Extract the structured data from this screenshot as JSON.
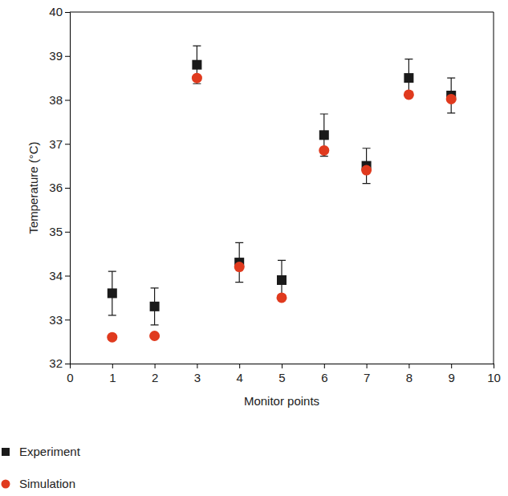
{
  "chart_data": {
    "type": "scatter",
    "x_label": "Monitor points",
    "y_label": "Temperature (°C)",
    "x": [
      1,
      2,
      3,
      4,
      5,
      6,
      7,
      8,
      9
    ],
    "series": [
      {
        "name": "Experiment",
        "color": "#1a1a1a",
        "marker": "square",
        "values": [
          33.6,
          33.3,
          38.8,
          34.3,
          33.9,
          37.2,
          36.5,
          38.5,
          38.1
        ],
        "errors": [
          0.5,
          0.42,
          0.43,
          0.45,
          0.45,
          0.48,
          0.4,
          0.43,
          0.4
        ]
      },
      {
        "name": "Simulation",
        "color": "#e03a1e",
        "marker": "circle",
        "values": [
          32.6,
          32.63,
          38.5,
          34.2,
          33.5,
          36.85,
          36.4,
          38.12,
          38.02
        ]
      }
    ],
    "xlim": [
      0,
      10
    ],
    "xticks": [
      0,
      1,
      2,
      3,
      4,
      5,
      6,
      7,
      8,
      9,
      10
    ],
    "ylim": [
      32,
      40
    ],
    "yticks": [
      32,
      33,
      34,
      35,
      36,
      37,
      38,
      39,
      40
    ],
    "legend": "bottom"
  }
}
